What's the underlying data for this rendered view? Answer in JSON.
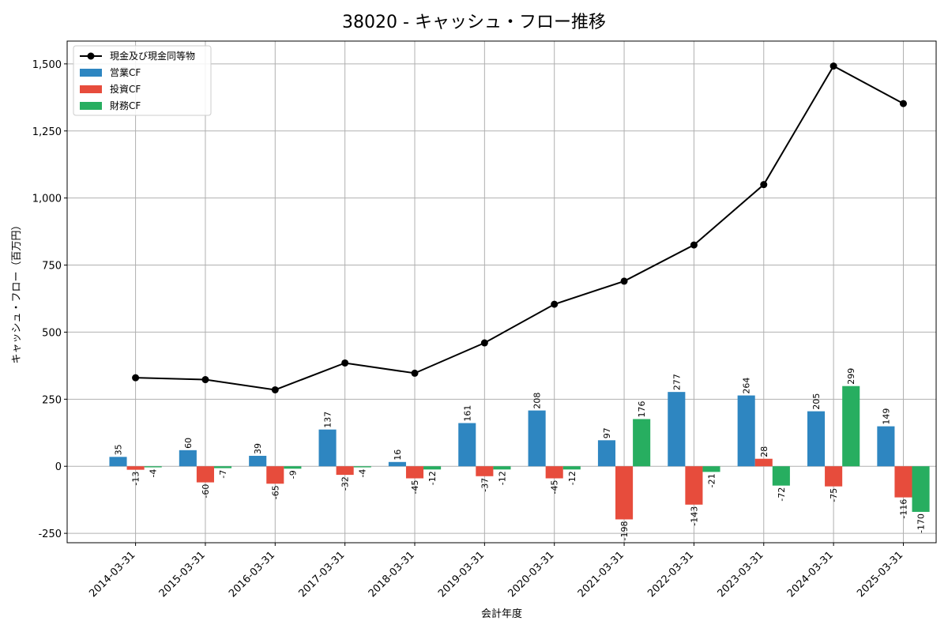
{
  "chart_data": {
    "type": "bar",
    "title": "38020 - キャッシュ・フロー推移",
    "xlabel": "会計年度",
    "ylabel": "キャッシュ・フロー（百万円）",
    "ylim": [
      -285,
      1585
    ],
    "yticks": [
      -250,
      0,
      250,
      500,
      750,
      1000,
      1250,
      1500
    ],
    "ytick_labels": [
      "-250",
      "0",
      "250",
      "500",
      "750",
      "1,000",
      "1,250",
      "1,500"
    ],
    "grid": true,
    "legend_position": "top-left",
    "categories": [
      "2014-03-31",
      "2015-03-31",
      "2016-03-31",
      "2017-03-31",
      "2018-03-31",
      "2019-03-31",
      "2020-03-31",
      "2021-03-31",
      "2022-03-31",
      "2023-03-31",
      "2024-03-31",
      "2025-03-31"
    ],
    "series": [
      {
        "name": "営業CF",
        "kind": "bar",
        "color": "#2e86c1",
        "values": [
          35,
          60,
          39,
          137,
          16,
          161,
          208,
          97,
          277,
          264,
          205,
          149
        ]
      },
      {
        "name": "投資CF",
        "kind": "bar",
        "color": "#e74c3c",
        "values": [
          -13,
          -60,
          -65,
          -32,
          -45,
          -37,
          -45,
          -198,
          -143,
          28,
          -75,
          -116
        ]
      },
      {
        "name": "財務CF",
        "kind": "bar",
        "color": "#27ae60",
        "values": [
          -4,
          -7,
          -9,
          -4,
          -12,
          -12,
          -12,
          176,
          -21,
          -72,
          299,
          -170
        ]
      }
    ],
    "line_series": {
      "name": "現金及び現金同等物",
      "kind": "line",
      "color": "#000000",
      "values": [
        330,
        323,
        285,
        385,
        347,
        460,
        604,
        690,
        825,
        1050,
        1492,
        1352
      ]
    }
  }
}
